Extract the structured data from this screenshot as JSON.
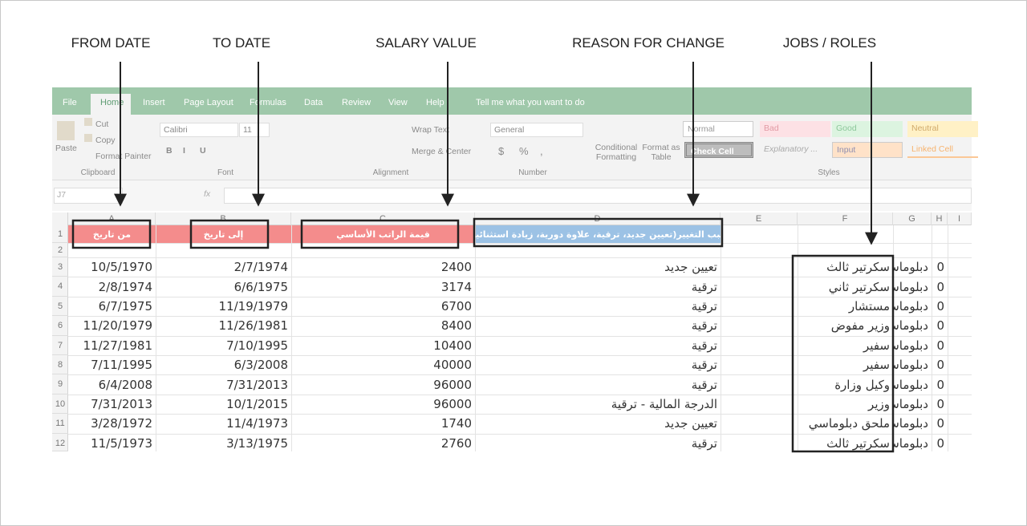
{
  "annotations": [
    "FROM DATE",
    "TO DATE",
    "SALARY VALUE",
    "REASON FOR CHANGE",
    "JOBS / ROLES"
  ],
  "ribbon": {
    "tabs": [
      "File",
      "Home",
      "Insert",
      "Page Layout",
      "Formulas",
      "Data",
      "Review",
      "View",
      "Help"
    ],
    "tell_me": "Tell me what you want to do",
    "clipboard": {
      "paste": "Paste",
      "cut": "Cut",
      "copy": "Copy",
      "format_painter": "Format Painter",
      "label": "Clipboard"
    },
    "font": {
      "name": "Calibri",
      "size": 11,
      "buttons": [
        "B",
        "I",
        "U"
      ],
      "label": "Font"
    },
    "alignment": {
      "wrap_text": "Wrap Text",
      "merge_center": "Merge & Center",
      "label": "Alignment"
    },
    "number": {
      "format": "General",
      "symbols": [
        "$",
        "%",
        ","
      ],
      "label": "Number"
    },
    "styles": {
      "conditional_formatting": "Conditional Formatting",
      "format_as_table": "Format as Table",
      "cells": [
        "Normal",
        "Bad",
        "Good",
        "Neutral",
        "Check Cell",
        "Explanatory ...",
        "Input",
        "Linked Cell"
      ],
      "label": "Styles"
    }
  },
  "formula_bar": {
    "name_box": "J7",
    "fx": "fx"
  },
  "sheet": {
    "columns": [
      "A",
      "B",
      "C",
      "D",
      "E",
      "F",
      "G",
      "H",
      "I"
    ],
    "rows": [
      1,
      2,
      3,
      4,
      5,
      6,
      7,
      8,
      9,
      10,
      11,
      12
    ],
    "cells": [
      [
        "من تاريخ",
        "إلى تاريخ",
        "قيمة الراتب الأساسي",
        "سبب التغيير(تعيين جديد، ترقية، علاوة دورية، زيادة استثنائية)",
        null,
        null,
        null,
        null
      ],
      [
        null,
        null,
        null,
        null,
        null,
        null,
        null,
        null
      ],
      [
        "10/5/1970",
        "2/7/1974",
        2400,
        "تعيين جديد",
        null,
        "سكرتير ثالث",
        "دبلوماس",
        0
      ],
      [
        "2/8/1974",
        "6/6/1975",
        3174,
        "ترقية",
        null,
        "سكرتير ثاني",
        "دبلوماس",
        0
      ],
      [
        "6/7/1975",
        "11/19/1979",
        6700,
        "ترقية",
        null,
        "مستشار",
        "دبلوماس",
        0
      ],
      [
        "11/20/1979",
        "11/26/1981",
        8400,
        "ترقية",
        null,
        "وزير مفوض",
        "دبلوماس",
        0
      ],
      [
        "11/27/1981",
        "7/10/1995",
        10400,
        "ترقية",
        null,
        "سفير",
        "دبلوماس",
        0
      ],
      [
        "7/11/1995",
        "6/3/2008",
        40000,
        "ترقية",
        null,
        "سفير",
        "دبلوماس",
        0
      ],
      [
        "6/4/2008",
        "7/31/2013",
        96000,
        "ترقية",
        null,
        "وكيل وزارة",
        "دبلوماس",
        0
      ],
      [
        "7/31/2013",
        "10/1/2015",
        96000,
        "الدرجة المالية - ترقية",
        null,
        "وزير",
        "دبلوماس",
        0
      ],
      [
        "3/28/1972",
        "11/4/1973",
        1740,
        "تعيين جديد",
        null,
        "ملحق دبلوماسي",
        "دبلوماس",
        0
      ],
      [
        "11/5/1973",
        "3/13/1975",
        2760,
        "ترقية",
        null,
        "سكرتير ثالث",
        "دبلوماس",
        0
      ]
    ]
  }
}
